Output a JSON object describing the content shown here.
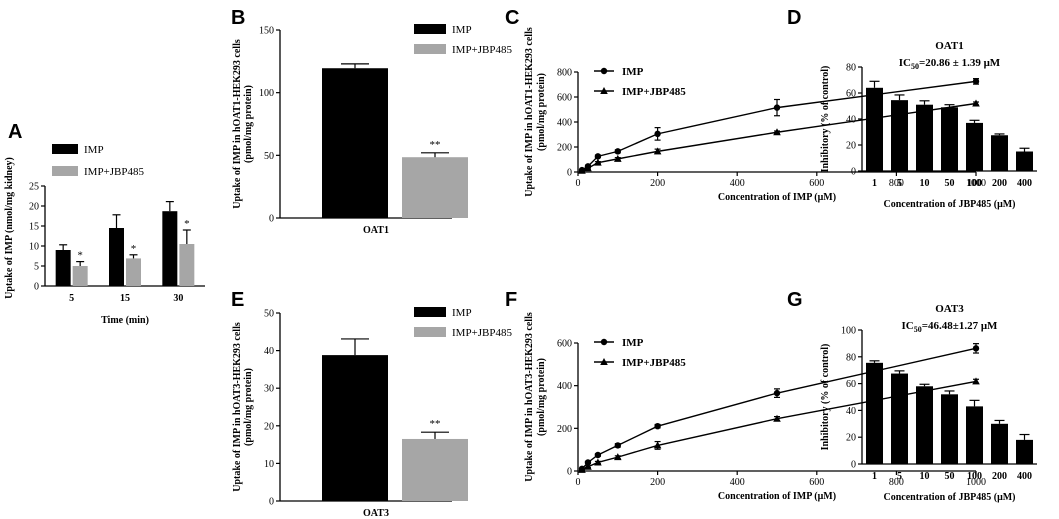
{
  "figure": {
    "panel_letters": [
      "A",
      "B",
      "C",
      "D",
      "E",
      "F",
      "G"
    ]
  },
  "chart_data": [
    {
      "id": "A",
      "type": "bar",
      "title": "",
      "xlabel": "Time (min)",
      "ylabel": "Uptake of IMP (nmol/mg kidney)",
      "categories": [
        "5",
        "15",
        "30"
      ],
      "series": [
        {
          "name": "IMP",
          "color": "#000000",
          "values": [
            9,
            14.5,
            18.7
          ],
          "errors": [
            1.3,
            3.3,
            2.4
          ],
          "annotations": [
            "",
            "",
            ""
          ]
        },
        {
          "name": "IMP+JBP485",
          "color": "#a6a6a6",
          "values": [
            5,
            6.9,
            10.5
          ],
          "errors": [
            1.1,
            0.9,
            3.5
          ],
          "annotations": [
            "*",
            "*",
            "*"
          ]
        }
      ],
      "ylim": [
        0,
        25
      ],
      "yticks": [
        "0",
        "5",
        "10",
        "15",
        "20",
        "25"
      ]
    },
    {
      "id": "B",
      "type": "bar",
      "title": "",
      "xlabel": "OAT1",
      "ylabel": "Uptake of IMP in hOAT1-HEK293 cells (pmol/mg protein)",
      "categories": [
        "IMP",
        "IMP+JBP485"
      ],
      "values": [
        119.5,
        48.5
      ],
      "errors": [
        3.5,
        3.5
      ],
      "colors": [
        "#000000",
        "#a6a6a6"
      ],
      "annotations": [
        "",
        "**"
      ],
      "legend": [
        "IMP",
        "IMP+JBP485"
      ],
      "ylim": [
        0,
        150
      ],
      "yticks": [
        "0",
        "50",
        "100",
        "150"
      ]
    },
    {
      "id": "C",
      "type": "line",
      "title": "",
      "xlabel": "Concentration of IMP (μM)",
      "ylabel": "Uptake of IMP in hOAT1-HEK293 cells (pmol/mg protein)",
      "x": [
        10,
        25,
        50,
        100,
        200,
        500,
        1000
      ],
      "series": [
        {
          "name": "IMP",
          "marker": "circle",
          "values": [
            15,
            45,
            125,
            165,
            305,
            515,
            725
          ],
          "errors": [
            5,
            8,
            10,
            12,
            50,
            65,
            22
          ]
        },
        {
          "name": "IMP+JBP485",
          "marker": "triangle",
          "values": [
            10,
            30,
            75,
            105,
            165,
            318,
            548
          ],
          "errors": [
            4,
            6,
            8,
            10,
            18,
            10,
            12
          ]
        }
      ],
      "xlim": [
        0,
        1000
      ],
      "ylim": [
        0,
        800
      ],
      "xticks": [
        "0",
        "200",
        "400",
        "600",
        "800",
        "1000"
      ],
      "yticks": [
        "0",
        "200",
        "400",
        "600",
        "800"
      ]
    },
    {
      "id": "D",
      "type": "bar",
      "title": "OAT1",
      "subtitle": {
        "prefix": "IC",
        "sub": "50",
        "suffix": "=20.86 ± 1.39 μM"
      },
      "xlabel": "Concentration of JBP485 (μM)",
      "ylabel": "Inhibitory (% of control)",
      "categories": [
        "1",
        "5",
        "10",
        "50",
        "100",
        "200",
        "400"
      ],
      "values": [
        64,
        54.5,
        51,
        49,
        37,
        27.5,
        15
      ],
      "errors": [
        5,
        4,
        3,
        2,
        2,
        1,
        2.5
      ],
      "ylim": [
        0,
        80
      ],
      "yticks": [
        "0",
        "20",
        "40",
        "60",
        "80"
      ]
    },
    {
      "id": "E",
      "type": "bar",
      "title": "",
      "xlabel": "OAT3",
      "ylabel": "Uptake of IMP in hOAT3-HEK293 cells (pmol/mg protein)",
      "categories": [
        "IMP",
        "IMP+JBP485"
      ],
      "values": [
        38.8,
        16.5
      ],
      "errors": [
        4.3,
        1.8
      ],
      "colors": [
        "#000000",
        "#a6a6a6"
      ],
      "annotations": [
        "",
        "**"
      ],
      "legend": [
        "IMP",
        "IMP+JBP485"
      ],
      "ylim": [
        0,
        50
      ],
      "yticks": [
        "0",
        "10",
        "20",
        "30",
        "40",
        "50"
      ]
    },
    {
      "id": "F",
      "type": "line",
      "title": "",
      "xlabel": "Concentration of IMP (μM)",
      "ylabel": "Uptake of IMP in hOAT3-HEK293 cells (pmol/mg protein)",
      "x": [
        10,
        25,
        50,
        100,
        200,
        500,
        1000
      ],
      "series": [
        {
          "name": "IMP",
          "marker": "circle",
          "values": [
            10,
            40,
            75,
            120,
            210,
            365,
            575
          ],
          "errors": [
            4,
            5,
            6,
            8,
            8,
            20,
            22
          ]
        },
        {
          "name": "IMP+JBP485",
          "marker": "triangle",
          "values": [
            5,
            20,
            40,
            65,
            120,
            245,
            420
          ],
          "errors": [
            3,
            4,
            5,
            6,
            18,
            10,
            10
          ]
        }
      ],
      "xlim": [
        0,
        1000
      ],
      "ylim": [
        0,
        600
      ],
      "xticks": [
        "0",
        "200",
        "400",
        "600",
        "800",
        "1000"
      ],
      "yticks": [
        "0",
        "200",
        "400",
        "600"
      ]
    },
    {
      "id": "G",
      "type": "bar",
      "title": "OAT3",
      "subtitle": {
        "prefix": "IC",
        "sub": "50",
        "suffix": "=46.48±1.27 μM"
      },
      "xlabel": "Concentration of JBP485 (μM)",
      "ylabel": "Inhibitory (% of control)",
      "categories": [
        "1",
        "5",
        "10",
        "50",
        "100",
        "200",
        "400"
      ],
      "values": [
        75.5,
        67.5,
        58,
        52,
        43,
        30,
        18
      ],
      "errors": [
        1.5,
        2,
        1.5,
        2.5,
        4.5,
        2.5,
        4
      ],
      "ylim": [
        0,
        100
      ],
      "yticks": [
        "0",
        "20",
        "40",
        "60",
        "80",
        "100"
      ]
    }
  ]
}
